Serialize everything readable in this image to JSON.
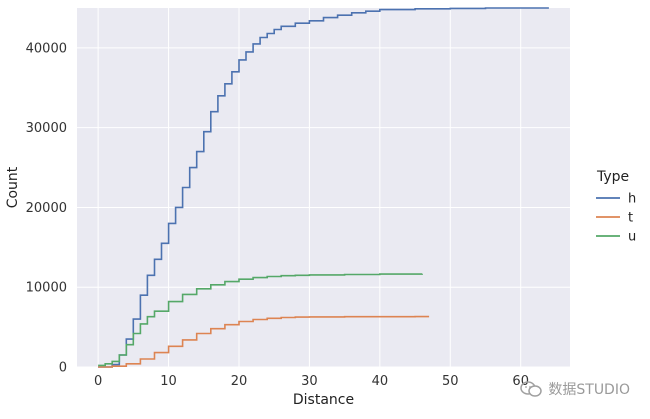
{
  "chart_data": {
    "type": "line",
    "xlabel": "Distance",
    "ylabel": "Count",
    "xlim": [
      -3,
      67
    ],
    "ylim": [
      0,
      45000
    ],
    "x_ticks": [
      0,
      10,
      20,
      30,
      40,
      50,
      60
    ],
    "y_ticks": [
      0,
      10000,
      20000,
      30000,
      40000
    ],
    "grid": true,
    "legend": {
      "title": "Type",
      "placement": "right"
    },
    "series": [
      {
        "name": "h",
        "color": "#4c72b0",
        "x": [
          0,
          2,
          3,
          4,
          5,
          6,
          7,
          8,
          9,
          10,
          11,
          12,
          13,
          14,
          15,
          16,
          17,
          18,
          19,
          20,
          21,
          22,
          23,
          24,
          25,
          26,
          28,
          30,
          32,
          34,
          36,
          38,
          40,
          45,
          50,
          55,
          60,
          64
        ],
        "y": [
          0,
          300,
          1500,
          3500,
          6000,
          9000,
          11500,
          13500,
          15500,
          18000,
          20000,
          22500,
          25000,
          27000,
          29500,
          32000,
          34000,
          35500,
          37000,
          38500,
          39500,
          40500,
          41300,
          41800,
          42300,
          42700,
          43100,
          43400,
          43800,
          44100,
          44400,
          44600,
          44800,
          44900,
          44950,
          45000,
          45000,
          45000
        ]
      },
      {
        "name": "t",
        "color": "#dd8452",
        "x": [
          0,
          2,
          4,
          6,
          8,
          10,
          12,
          14,
          16,
          18,
          20,
          22,
          24,
          26,
          28,
          30,
          35,
          40,
          45,
          47
        ],
        "y": [
          0,
          100,
          400,
          1000,
          1800,
          2600,
          3400,
          4200,
          4800,
          5300,
          5700,
          5950,
          6100,
          6200,
          6250,
          6280,
          6300,
          6310,
          6320,
          6320
        ]
      },
      {
        "name": "u",
        "color": "#55a868",
        "x": [
          0,
          1,
          2,
          3,
          4,
          5,
          6,
          7,
          8,
          10,
          12,
          14,
          16,
          18,
          20,
          22,
          24,
          26,
          28,
          30,
          35,
          40,
          46
        ],
        "y": [
          200,
          400,
          700,
          1500,
          2800,
          4200,
          5400,
          6300,
          7000,
          8200,
          9100,
          9800,
          10300,
          10700,
          11000,
          11200,
          11350,
          11450,
          11500,
          11550,
          11600,
          11650,
          11680
        ]
      }
    ]
  },
  "watermark": {
    "text": "数据STUDIO"
  }
}
